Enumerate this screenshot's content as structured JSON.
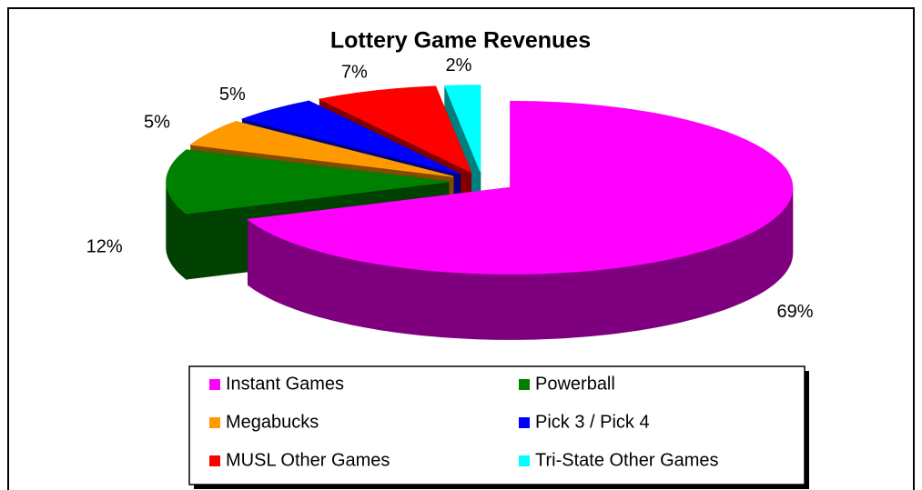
{
  "chart_data": {
    "type": "pie",
    "title": "Lottery Game Revenues",
    "categories": [
      "Instant Games",
      "Powerball",
      "Megabucks",
      "Pick 3 / Pick 4",
      "MUSL Other Games",
      "Tri-State Other Games"
    ],
    "values": [
      69,
      12,
      5,
      5,
      7,
      2
    ],
    "value_labels": [
      "69%",
      "12%",
      "5%",
      "5%",
      "7%",
      "2%"
    ],
    "colors": [
      "#ff00ff",
      "#008000",
      "#ff9900",
      "#0000ff",
      "#ff0000",
      "#00ffff"
    ],
    "legend": "bottom"
  }
}
